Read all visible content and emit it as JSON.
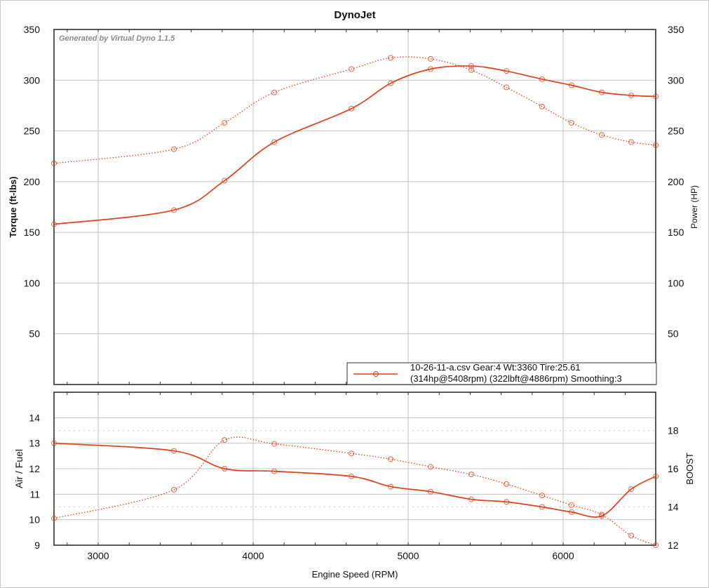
{
  "chart_data": [
    {
      "type": "line",
      "title": "DynoJet",
      "watermark": "Generated by Virtual Dyno 1.1.5",
      "xlabel": "Engine Speed (RPM)",
      "ylabel": "Torque (ft-lbs)",
      "y2label": "Power (HP)",
      "xlim": [
        2715,
        6597
      ],
      "ylim": [
        0,
        350
      ],
      "y2lim": [
        0,
        350
      ],
      "xticks": [
        3000,
        4000,
        5000,
        6000
      ],
      "yticks": [
        50,
        100,
        150,
        200,
        250,
        300,
        350
      ],
      "grid": true,
      "legend": {
        "placement": "bottom-right",
        "line1": "10-26-11-a.csv Gear:4 Wt:3360 Tire:25.61",
        "line2": "(314hp@5408rpm) (322lbft@4886rpm) Smoothing:3"
      },
      "color": "#e0401c",
      "x": [
        2715,
        3489,
        3815,
        4136,
        4634,
        4887,
        5145,
        5407,
        5634,
        5864,
        6054,
        6249,
        6439,
        6597
      ],
      "series": [
        {
          "name": "Torque",
          "axis": "left",
          "style": "dotted",
          "values": [
            218,
            232,
            258,
            288,
            311,
            322,
            321,
            310,
            293,
            274,
            258,
            246,
            239,
            236
          ]
        },
        {
          "name": "Power",
          "axis": "right",
          "style": "solid",
          "values": [
            158,
            172,
            201,
            239,
            272,
            297,
            311,
            314,
            309,
            301,
            295,
            288,
            285,
            284
          ]
        }
      ]
    },
    {
      "type": "line",
      "xlabel": "Engine Speed (RPM)",
      "ylabel": "Air / Fuel",
      "y2label": "BOOST",
      "xlim": [
        2715,
        6597
      ],
      "ylim": [
        9,
        15
      ],
      "y2lim": [
        12,
        20
      ],
      "xticks": [
        3000,
        4000,
        5000,
        6000
      ],
      "yticks": [
        9,
        10,
        11,
        12,
        13,
        14
      ],
      "y2ticks": [
        12,
        14,
        16,
        18
      ],
      "grid": true,
      "color": "#e0401c",
      "x": [
        2715,
        3489,
        3815,
        4136,
        4634,
        4887,
        5145,
        5407,
        5634,
        5864,
        6054,
        6249,
        6439,
        6597
      ],
      "series": [
        {
          "name": "Air / Fuel",
          "axis": "left",
          "style": "solid",
          "values": [
            13.0,
            12.7,
            12.0,
            11.9,
            11.7,
            11.3,
            11.1,
            10.8,
            10.7,
            10.5,
            10.3,
            10.15,
            11.2,
            11.7
          ]
        },
        {
          "name": "Boost",
          "axis": "right",
          "style": "dotted",
          "values": [
            13.4,
            14.9,
            17.5,
            17.3,
            16.8,
            16.5,
            16.1,
            15.7,
            15.2,
            14.6,
            14.1,
            13.6,
            12.5,
            12.0
          ]
        }
      ]
    }
  ]
}
